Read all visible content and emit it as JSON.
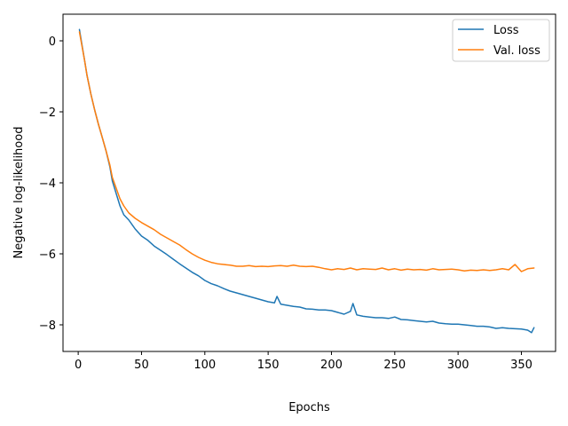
{
  "chart_data": {
    "type": "line",
    "title": "",
    "xlabel": "Epochs",
    "ylabel": "Negative log-likelihood",
    "xlim": [
      -12,
      377
    ],
    "ylim": [
      -8.75,
      0.75
    ],
    "xticks": [
      0,
      50,
      100,
      150,
      200,
      250,
      300,
      350
    ],
    "yticks": [
      -8,
      -6,
      -4,
      -2,
      0
    ],
    "grid": false,
    "legend_position": "top-right",
    "series": [
      {
        "name": "Loss",
        "color": "#1f77b4",
        "points": [
          [
            1,
            0.32
          ],
          [
            3,
            -0.12
          ],
          [
            5,
            -0.55
          ],
          [
            7,
            -0.98
          ],
          [
            10,
            -1.5
          ],
          [
            13,
            -1.95
          ],
          [
            16,
            -2.35
          ],
          [
            19,
            -2.72
          ],
          [
            22,
            -3.1
          ],
          [
            25,
            -3.55
          ],
          [
            27,
            -3.95
          ],
          [
            30,
            -4.3
          ],
          [
            33,
            -4.65
          ],
          [
            36,
            -4.9
          ],
          [
            40,
            -5.05
          ],
          [
            45,
            -5.3
          ],
          [
            50,
            -5.5
          ],
          [
            55,
            -5.62
          ],
          [
            60,
            -5.78
          ],
          [
            65,
            -5.9
          ],
          [
            70,
            -6.02
          ],
          [
            75,
            -6.15
          ],
          [
            80,
            -6.28
          ],
          [
            85,
            -6.4
          ],
          [
            90,
            -6.52
          ],
          [
            95,
            -6.62
          ],
          [
            100,
            -6.75
          ],
          [
            105,
            -6.84
          ],
          [
            110,
            -6.9
          ],
          [
            115,
            -6.98
          ],
          [
            120,
            -7.05
          ],
          [
            125,
            -7.1
          ],
          [
            130,
            -7.15
          ],
          [
            135,
            -7.2
          ],
          [
            140,
            -7.25
          ],
          [
            145,
            -7.3
          ],
          [
            150,
            -7.35
          ],
          [
            155,
            -7.38
          ],
          [
            157,
            -7.2
          ],
          [
            160,
            -7.42
          ],
          [
            165,
            -7.45
          ],
          [
            170,
            -7.48
          ],
          [
            175,
            -7.5
          ],
          [
            180,
            -7.55
          ],
          [
            185,
            -7.56
          ],
          [
            190,
            -7.58
          ],
          [
            195,
            -7.58
          ],
          [
            200,
            -7.6
          ],
          [
            205,
            -7.65
          ],
          [
            210,
            -7.7
          ],
          [
            215,
            -7.62
          ],
          [
            217,
            -7.4
          ],
          [
            220,
            -7.72
          ],
          [
            225,
            -7.76
          ],
          [
            230,
            -7.78
          ],
          [
            235,
            -7.8
          ],
          [
            240,
            -7.8
          ],
          [
            245,
            -7.82
          ],
          [
            250,
            -7.78
          ],
          [
            255,
            -7.85
          ],
          [
            260,
            -7.86
          ],
          [
            265,
            -7.88
          ],
          [
            270,
            -7.9
          ],
          [
            275,
            -7.92
          ],
          [
            280,
            -7.9
          ],
          [
            285,
            -7.95
          ],
          [
            290,
            -7.97
          ],
          [
            295,
            -7.98
          ],
          [
            300,
            -7.98
          ],
          [
            305,
            -8.0
          ],
          [
            310,
            -8.02
          ],
          [
            315,
            -8.04
          ],
          [
            320,
            -8.04
          ],
          [
            325,
            -8.06
          ],
          [
            330,
            -8.1
          ],
          [
            335,
            -8.08
          ],
          [
            340,
            -8.1
          ],
          [
            345,
            -8.11
          ],
          [
            350,
            -8.12
          ],
          [
            355,
            -8.15
          ],
          [
            358,
            -8.22
          ],
          [
            360,
            -8.08
          ]
        ]
      },
      {
        "name": "Val. loss",
        "color": "#ff7f0e",
        "points": [
          [
            1,
            0.25
          ],
          [
            3,
            -0.15
          ],
          [
            5,
            -0.55
          ],
          [
            7,
            -0.98
          ],
          [
            10,
            -1.5
          ],
          [
            13,
            -1.95
          ],
          [
            16,
            -2.35
          ],
          [
            19,
            -2.72
          ],
          [
            22,
            -3.1
          ],
          [
            25,
            -3.5
          ],
          [
            27,
            -3.85
          ],
          [
            30,
            -4.15
          ],
          [
            33,
            -4.45
          ],
          [
            36,
            -4.65
          ],
          [
            40,
            -4.85
          ],
          [
            45,
            -5.0
          ],
          [
            50,
            -5.12
          ],
          [
            55,
            -5.22
          ],
          [
            60,
            -5.32
          ],
          [
            65,
            -5.45
          ],
          [
            70,
            -5.55
          ],
          [
            75,
            -5.65
          ],
          [
            80,
            -5.75
          ],
          [
            85,
            -5.88
          ],
          [
            90,
            -6.0
          ],
          [
            95,
            -6.1
          ],
          [
            100,
            -6.18
          ],
          [
            105,
            -6.24
          ],
          [
            110,
            -6.28
          ],
          [
            115,
            -6.3
          ],
          [
            120,
            -6.32
          ],
          [
            125,
            -6.35
          ],
          [
            130,
            -6.35
          ],
          [
            135,
            -6.33
          ],
          [
            140,
            -6.36
          ],
          [
            145,
            -6.35
          ],
          [
            150,
            -6.36
          ],
          [
            155,
            -6.34
          ],
          [
            160,
            -6.33
          ],
          [
            165,
            -6.35
          ],
          [
            170,
            -6.32
          ],
          [
            175,
            -6.35
          ],
          [
            180,
            -6.36
          ],
          [
            185,
            -6.35
          ],
          [
            190,
            -6.38
          ],
          [
            195,
            -6.42
          ],
          [
            200,
            -6.45
          ],
          [
            205,
            -6.42
          ],
          [
            210,
            -6.44
          ],
          [
            215,
            -6.4
          ],
          [
            220,
            -6.45
          ],
          [
            225,
            -6.42
          ],
          [
            230,
            -6.43
          ],
          [
            235,
            -6.44
          ],
          [
            240,
            -6.4
          ],
          [
            245,
            -6.45
          ],
          [
            250,
            -6.42
          ],
          [
            255,
            -6.46
          ],
          [
            260,
            -6.43
          ],
          [
            265,
            -6.45
          ],
          [
            270,
            -6.44
          ],
          [
            275,
            -6.46
          ],
          [
            280,
            -6.42
          ],
          [
            285,
            -6.45
          ],
          [
            290,
            -6.44
          ],
          [
            295,
            -6.43
          ],
          [
            300,
            -6.45
          ],
          [
            305,
            -6.48
          ],
          [
            310,
            -6.46
          ],
          [
            315,
            -6.47
          ],
          [
            320,
            -6.45
          ],
          [
            325,
            -6.47
          ],
          [
            330,
            -6.45
          ],
          [
            335,
            -6.42
          ],
          [
            340,
            -6.45
          ],
          [
            345,
            -6.3
          ],
          [
            350,
            -6.5
          ],
          [
            355,
            -6.42
          ],
          [
            360,
            -6.4
          ]
        ]
      }
    ]
  }
}
